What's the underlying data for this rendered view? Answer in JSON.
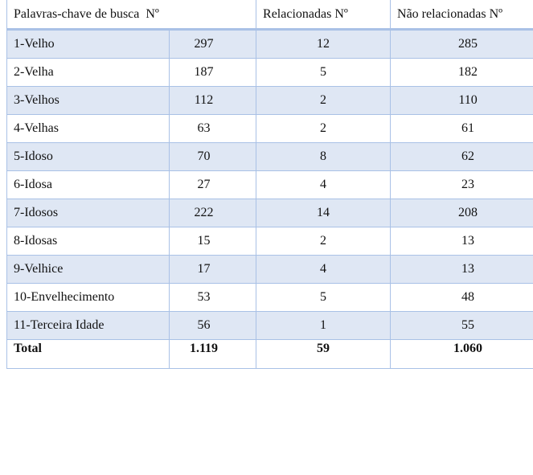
{
  "table": {
    "headers": [
      "Palavras-chave de busca  Nº",
      "Relacionadas Nº",
      "Não relacionadas Nº"
    ],
    "rows": [
      {
        "keyword": "1-Velho",
        "n": "297",
        "rel": "12",
        "nao_rel": "285"
      },
      {
        "keyword": "2-Velha",
        "n": "187",
        "rel": "5",
        "nao_rel": "182"
      },
      {
        "keyword": "3-Velhos",
        "n": "112",
        "rel": "2",
        "nao_rel": "110"
      },
      {
        "keyword": "4-Velhas",
        "n": "63",
        "rel": "2",
        "nao_rel": "61"
      },
      {
        "keyword": "5-Idoso",
        "n": "70",
        "rel": "8",
        "nao_rel": "62"
      },
      {
        "keyword": "6-Idosa",
        "n": "27",
        "rel": "4",
        "nao_rel": "23"
      },
      {
        "keyword": "7-Idosos",
        "n": "222",
        "rel": "14",
        "nao_rel": "208"
      },
      {
        "keyword": "8-Idosas",
        "n": "15",
        "rel": "2",
        "nao_rel": "13"
      },
      {
        "keyword": "9-Velhice",
        "n": "17",
        "rel": "4",
        "nao_rel": "13"
      },
      {
        "keyword": "10-Envelhecimento",
        "n": "53",
        "rel": "5",
        "nao_rel": "48"
      },
      {
        "keyword": "11-Terceira Idade",
        "n": "56",
        "rel": "1",
        "nao_rel": "55"
      }
    ],
    "total": {
      "label": "Total",
      "n": "1.119",
      "rel": "59",
      "nao_rel": "1.060"
    },
    "colors": {
      "border": "#a9c1e6",
      "shaded_row": "#dfe7f4"
    }
  }
}
